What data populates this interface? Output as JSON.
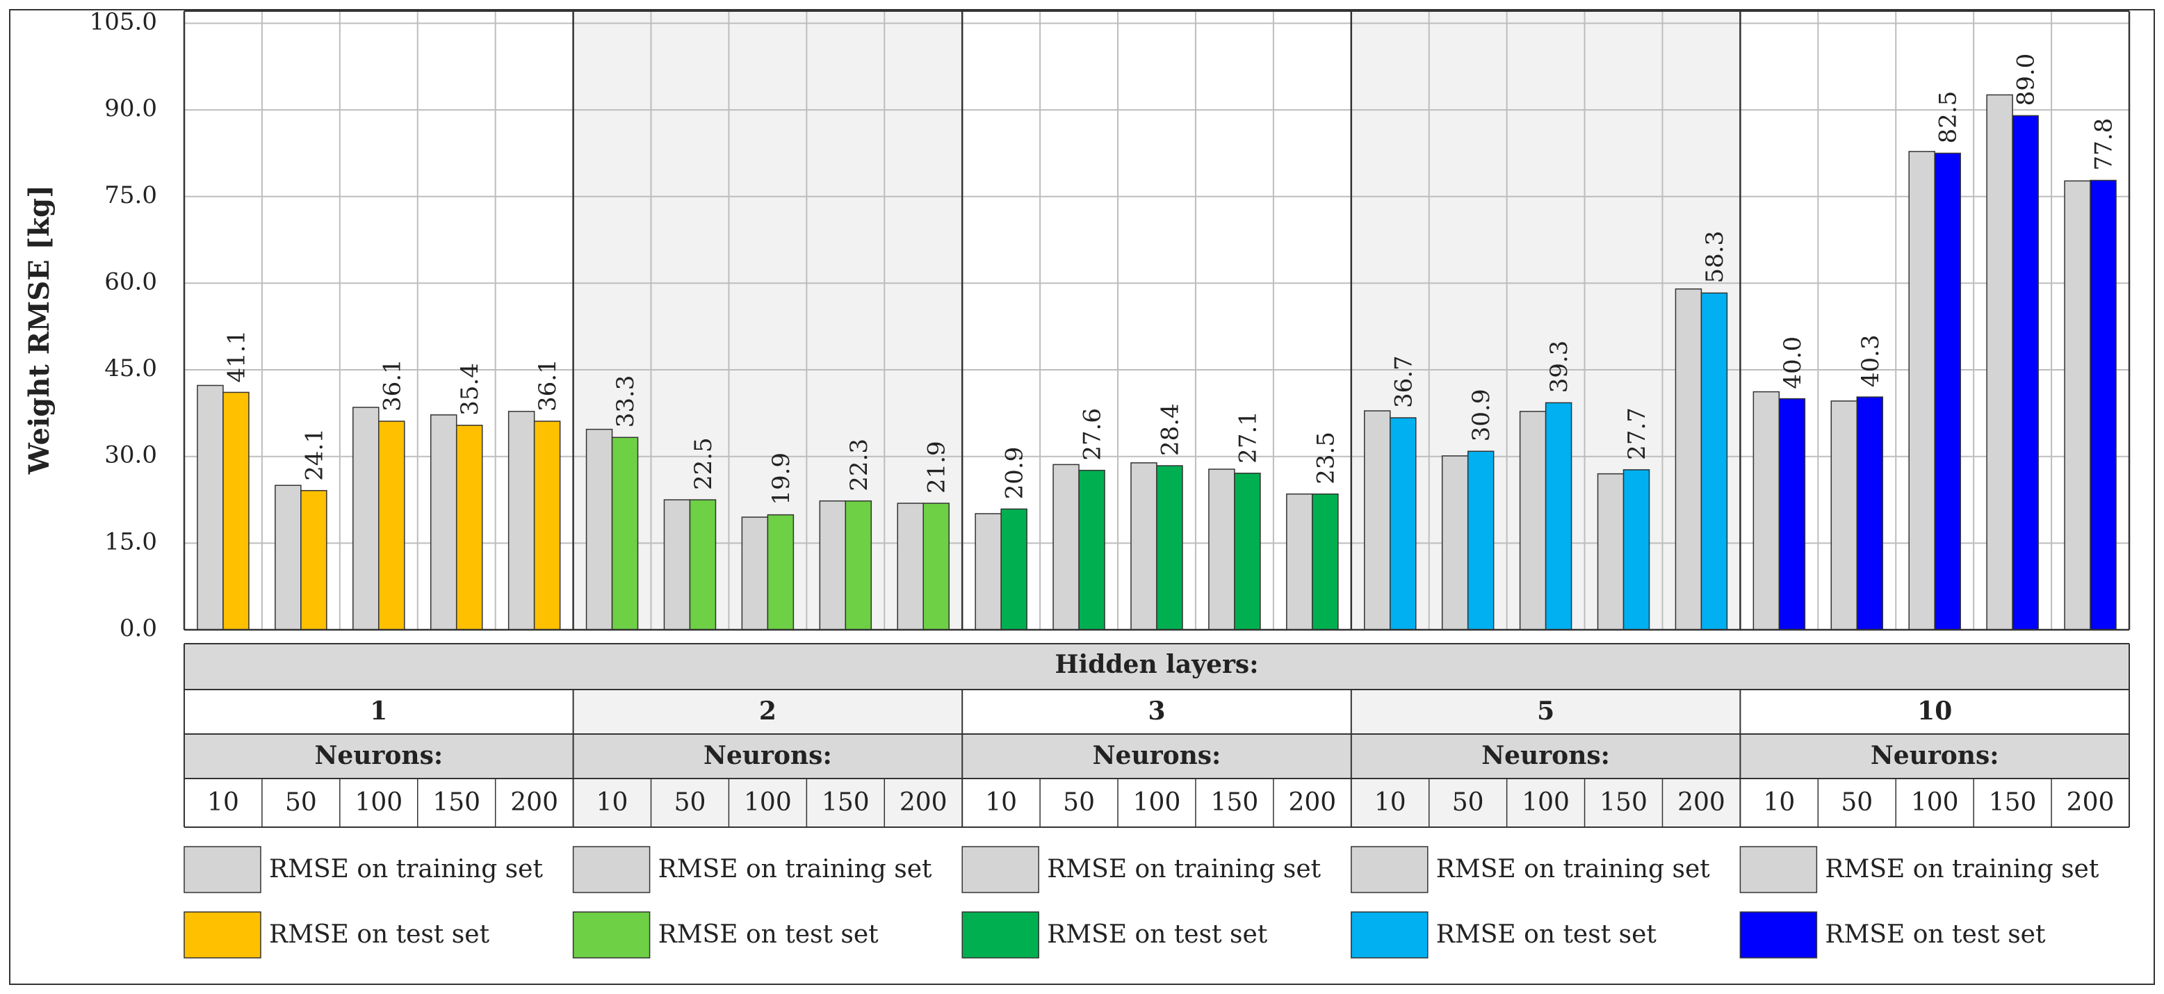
{
  "chart_data": {
    "type": "bar",
    "ylabel": "Weight RMSE [kg]",
    "ylim": [
      0,
      105
    ],
    "yticks": [
      "0.0",
      "15.0",
      "30.0",
      "45.0",
      "60.0",
      "75.0",
      "90.0",
      "105.0"
    ],
    "grid": true,
    "hidden_layers_label": "Hidden layers:",
    "neurons_label": "Neurons:",
    "groups": [
      {
        "layers": "1",
        "neurons": [
          "10",
          "50",
          "100",
          "150",
          "200"
        ],
        "train": [
          42.3,
          25.0,
          38.5,
          37.2,
          37.8
        ],
        "test": [
          41.1,
          24.1,
          36.1,
          35.4,
          36.1
        ],
        "test_labels": [
          "41.1",
          "24.1",
          "36.1",
          "35.4",
          "36.1"
        ],
        "color": "#FFC000",
        "shaded": false
      },
      {
        "layers": "2",
        "neurons": [
          "10",
          "50",
          "100",
          "150",
          "200"
        ],
        "train": [
          34.7,
          22.5,
          19.5,
          22.3,
          21.9
        ],
        "test": [
          33.3,
          22.5,
          19.9,
          22.3,
          21.9
        ],
        "test_labels": [
          "33.3",
          "22.5",
          "19.9",
          "22.3",
          "21.9"
        ],
        "color": "#6ED045",
        "shaded": true
      },
      {
        "layers": "3",
        "neurons": [
          "10",
          "50",
          "100",
          "150",
          "200"
        ],
        "train": [
          20.1,
          28.6,
          28.9,
          27.8,
          23.5
        ],
        "test": [
          20.9,
          27.6,
          28.4,
          27.1,
          23.5
        ],
        "test_labels": [
          "20.9",
          "27.6",
          "28.4",
          "27.1",
          "23.5"
        ],
        "color": "#00B050",
        "shaded": false
      },
      {
        "layers": "5",
        "neurons": [
          "10",
          "50",
          "100",
          "150",
          "200"
        ],
        "train": [
          37.9,
          30.1,
          37.8,
          27.0,
          59.0
        ],
        "test": [
          36.7,
          30.9,
          39.3,
          27.7,
          58.3
        ],
        "test_labels": [
          "36.7",
          "30.9",
          "39.3",
          "27.7",
          "58.3"
        ],
        "color": "#00B0F0",
        "shaded": true
      },
      {
        "layers": "10",
        "neurons": [
          "10",
          "50",
          "100",
          "150",
          "200"
        ],
        "train": [
          41.2,
          39.6,
          82.8,
          92.6,
          77.7
        ],
        "test": [
          40.0,
          40.3,
          82.5,
          89.0,
          77.8
        ],
        "test_labels": [
          "40.0",
          "40.3",
          "82.5",
          "89.0",
          "77.8"
        ],
        "color": "#0000FF",
        "shaded": false
      }
    ],
    "legend": {
      "train_label": "RMSE on training set",
      "test_label": "RMSE on test set",
      "train_color": "#D4D4D4"
    }
  }
}
